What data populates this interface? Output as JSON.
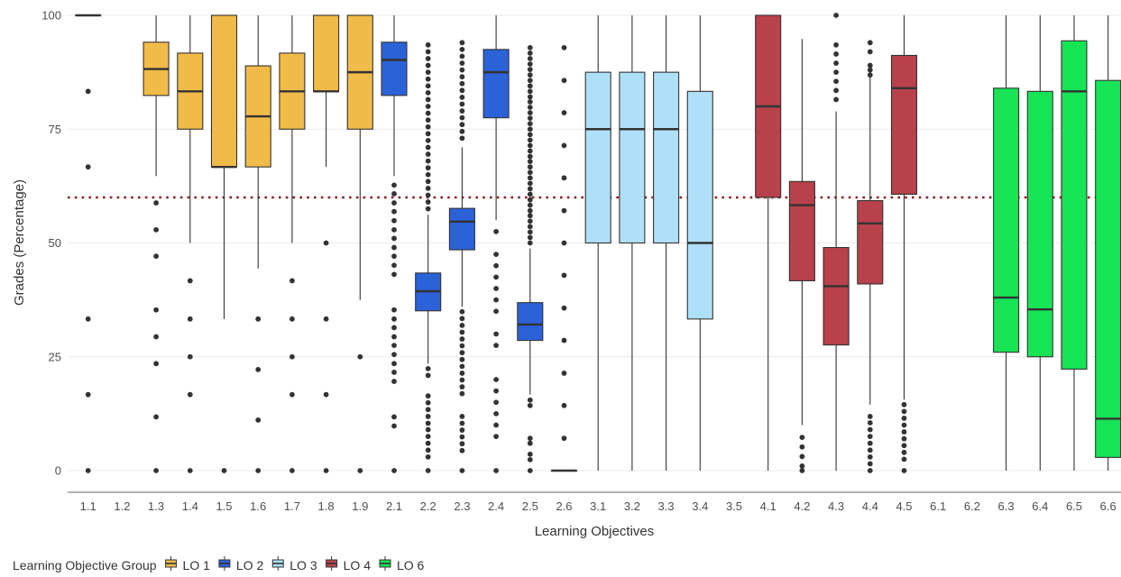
{
  "chart_data": {
    "type": "boxplot",
    "xlabel": "Learning Objectives",
    "ylabel": "Grades (Percentage)",
    "ylim": [
      0,
      100
    ],
    "yticks": [
      0,
      25,
      50,
      75,
      100
    ],
    "grid": true,
    "reference_line": {
      "y": 60,
      "style": "dotted",
      "color": "#8b1a1a"
    },
    "categories": [
      "1.1",
      "1.2",
      "1.3",
      "1.4",
      "1.5",
      "1.6",
      "1.7",
      "1.8",
      "1.9",
      "2.1",
      "2.2",
      "2.3",
      "2.4",
      "2.5",
      "2.6",
      "3.1",
      "3.2",
      "3.3",
      "3.4",
      "3.5",
      "4.1",
      "4.2",
      "4.3",
      "4.4",
      "4.5",
      "6.1",
      "6.2",
      "6.3",
      "6.4",
      "6.5",
      "6.6"
    ],
    "legend": {
      "title": "Learning Objective Group",
      "position": "bottom-left",
      "items": [
        {
          "label": "LO 1",
          "color": "#f0bb48"
        },
        {
          "label": "LO 2",
          "color": "#2c62d8"
        },
        {
          "label": "LO 3",
          "color": "#aee0f7"
        },
        {
          "label": "LO 4",
          "color": "#b8414b"
        },
        {
          "label": "LO 6",
          "color": "#16e455"
        }
      ]
    },
    "boxes": [
      {
        "category": "1.1",
        "group": "LO 1",
        "q1": 100,
        "median": 100,
        "q3": 100,
        "whisker_low": 100,
        "whisker_high": 100,
        "outliers": [
          83.3,
          66.7,
          33.3,
          16.7,
          0
        ]
      },
      {
        "category": "1.3",
        "group": "LO 1",
        "q1": 82.4,
        "median": 88.2,
        "q3": 94.1,
        "whisker_low": 64.7,
        "whisker_high": 100,
        "outliers": [
          58.8,
          52.9,
          47.1,
          35.3,
          29.4,
          23.5,
          11.8,
          0
        ]
      },
      {
        "category": "1.4",
        "group": "LO 1",
        "q1": 75,
        "median": 83.3,
        "q3": 91.7,
        "whisker_low": 50,
        "whisker_high": 100,
        "outliers": [
          41.7,
          33.3,
          25,
          16.7,
          0
        ]
      },
      {
        "category": "1.5",
        "group": "LO 1",
        "q1": 66.7,
        "median": 66.7,
        "q3": 100,
        "whisker_low": 33.3,
        "whisker_high": 100,
        "outliers": [
          0
        ]
      },
      {
        "category": "1.6",
        "group": "LO 1",
        "q1": 66.7,
        "median": 77.8,
        "q3": 88.9,
        "whisker_low": 44.4,
        "whisker_high": 100,
        "outliers": [
          33.3,
          22.2,
          11.1,
          0
        ]
      },
      {
        "category": "1.7",
        "group": "LO 1",
        "q1": 75,
        "median": 83.3,
        "q3": 91.7,
        "whisker_low": 50,
        "whisker_high": 100,
        "outliers": [
          41.7,
          33.3,
          25,
          16.7,
          0
        ]
      },
      {
        "category": "1.8",
        "group": "LO 1",
        "q1": 83.3,
        "median": 83.3,
        "q3": 100,
        "whisker_low": 66.7,
        "whisker_high": 100,
        "outliers": [
          50,
          33.3,
          16.7,
          0
        ]
      },
      {
        "category": "1.9",
        "group": "LO 1",
        "q1": 75,
        "median": 87.5,
        "q3": 100,
        "whisker_low": 37.5,
        "whisker_high": 100,
        "outliers": [
          25,
          0
        ]
      },
      {
        "category": "2.1",
        "group": "LO 2",
        "q1": 82.4,
        "median": 90.2,
        "q3": 94.1,
        "whisker_low": 64.7,
        "whisker_high": 100,
        "outliers": [
          62.7,
          60.8,
          58.8,
          56.9,
          54.9,
          52.9,
          51,
          49,
          47.1,
          45.1,
          43.1,
          35.3,
          33.3,
          31.4,
          29.4,
          27.5,
          25.5,
          23.5,
          21.6,
          19.6,
          11.8,
          9.8,
          0
        ]
      },
      {
        "category": "2.2",
        "group": "LO 2",
        "q1": 35.1,
        "median": 39.4,
        "q3": 43.4,
        "whisker_low": 23.5,
        "whisker_high": 56.2,
        "outliers": [
          93.5,
          92,
          90.5,
          89,
          87.5,
          86,
          84.5,
          83,
          81.5,
          80,
          78.5,
          77,
          75.5,
          74,
          72.5,
          71,
          69.5,
          68,
          66.5,
          65,
          63.5,
          62,
          60.5,
          59,
          57.5,
          22.4,
          20.9,
          16.4,
          14.9,
          13.4,
          11.9,
          10.4,
          9,
          7.5,
          6,
          4.5,
          3,
          0
        ]
      },
      {
        "category": "2.3",
        "group": "LO 2",
        "q1": 48.5,
        "median": 54.7,
        "q3": 57.6,
        "whisker_low": 36,
        "whisker_high": 71,
        "outliers": [
          94,
          92.5,
          91,
          89.5,
          88,
          86.5,
          85,
          83.5,
          82,
          80.5,
          79,
          77.5,
          76,
          74.5,
          73,
          34.9,
          33.4,
          31.9,
          30.4,
          28.9,
          27.4,
          25.9,
          24.4,
          22.9,
          21.4,
          19.9,
          18.4,
          16.9,
          11.9,
          10.4,
          8.9,
          7.4,
          5.9,
          4.4,
          0
        ]
      },
      {
        "category": "2.4",
        "group": "LO 2",
        "q1": 77.5,
        "median": 87.5,
        "q3": 92.5,
        "whisker_low": 55,
        "whisker_high": 100,
        "outliers": [
          52.5,
          47.5,
          45,
          42.5,
          40,
          37.5,
          35,
          30,
          27.5,
          20,
          17.5,
          15,
          12.5,
          10,
          7.5,
          0
        ]
      },
      {
        "category": "2.5",
        "group": "LO 2",
        "q1": 28.6,
        "median": 32.1,
        "q3": 36.9,
        "whisker_low": 16.7,
        "whisker_high": 48.8,
        "outliers": [
          92.9,
          91.7,
          90.5,
          89.3,
          88.1,
          86.9,
          85.7,
          84.5,
          83.3,
          82.1,
          81,
          79.8,
          78.6,
          77.4,
          76.2,
          75,
          73.8,
          72.6,
          71.4,
          70.2,
          69,
          67.9,
          66.7,
          65.5,
          64.3,
          63.1,
          61.9,
          60.7,
          59.5,
          58.3,
          57.1,
          56,
          54.8,
          53.6,
          52.4,
          51.2,
          50,
          15.5,
          14.3,
          7.1,
          6,
          3.6,
          2.4,
          0
        ]
      },
      {
        "category": "2.6",
        "group": "LO 2",
        "q1": 0,
        "median": 0,
        "q3": 0,
        "whisker_low": 0,
        "whisker_high": 0,
        "outliers": [
          92.9,
          85.7,
          78.6,
          71.4,
          64.3,
          57.1,
          50,
          42.9,
          35.7,
          28.6,
          21.4,
          14.3,
          7.1
        ]
      },
      {
        "category": "3.1",
        "group": "LO 3",
        "q1": 50,
        "median": 75,
        "q3": 87.5,
        "whisker_low": 0,
        "whisker_high": 100,
        "outliers": []
      },
      {
        "category": "3.2",
        "group": "LO 3",
        "q1": 50,
        "median": 75,
        "q3": 87.5,
        "whisker_low": 0,
        "whisker_high": 100,
        "outliers": []
      },
      {
        "category": "3.3",
        "group": "LO 3",
        "q1": 50,
        "median": 75,
        "q3": 87.5,
        "whisker_low": 0,
        "whisker_high": 100,
        "outliers": []
      },
      {
        "category": "3.4",
        "group": "LO 3",
        "q1": 33.3,
        "median": 50,
        "q3": 83.3,
        "whisker_low": 0,
        "whisker_high": 100,
        "outliers": []
      },
      {
        "category": "4.1",
        "group": "LO 4",
        "q1": 60,
        "median": 80,
        "q3": 100,
        "whisker_low": 0,
        "whisker_high": 100,
        "outliers": []
      },
      {
        "category": "4.2",
        "group": "LO 4",
        "q1": 41.7,
        "median": 58.3,
        "q3": 63.5,
        "whisker_low": 10,
        "whisker_high": 94.8,
        "outliers": [
          7.3,
          5.2,
          3.1,
          1,
          0
        ]
      },
      {
        "category": "4.3",
        "group": "LO 4",
        "q1": 27.6,
        "median": 40.5,
        "q3": 49,
        "whisker_low": 0,
        "whisker_high": 78.9,
        "outliers": [
          100,
          93.5,
          91.5,
          89.5,
          87.5,
          85.5,
          83.5,
          81.5
        ]
      },
      {
        "category": "4.4",
        "group": "LO 4",
        "q1": 41,
        "median": 54.3,
        "q3": 59.3,
        "whisker_low": 14.5,
        "whisker_high": 86.5,
        "outliers": [
          94,
          92,
          89,
          88,
          86.9,
          11.9,
          10.5,
          9,
          7.5,
          6,
          4.5,
          3,
          1.5,
          0
        ]
      },
      {
        "category": "4.5",
        "group": "LO 4",
        "q1": 60.7,
        "median": 84,
        "q3": 91.2,
        "whisker_low": 15.6,
        "whisker_high": 100,
        "outliers": [
          14.5,
          13,
          11.5,
          10,
          8.5,
          7,
          5.5,
          4,
          2.5,
          0
        ]
      },
      {
        "category": "6.3",
        "group": "LO 6",
        "q1": 26,
        "median": 38,
        "q3": 84,
        "whisker_low": 0,
        "whisker_high": 100,
        "outliers": []
      },
      {
        "category": "6.4",
        "group": "LO 6",
        "q1": 25,
        "median": 35.4,
        "q3": 83.3,
        "whisker_low": 0,
        "whisker_high": 100,
        "outliers": []
      },
      {
        "category": "6.5",
        "group": "LO 6",
        "q1": 22.3,
        "median": 83.3,
        "q3": 94.4,
        "whisker_low": 0,
        "whisker_high": 100,
        "outliers": []
      },
      {
        "category": "6.6",
        "group": "LO 6",
        "q1": 2.9,
        "median": 11.4,
        "q3": 85.7,
        "whisker_low": 0,
        "whisker_high": 100,
        "outliers": []
      }
    ]
  }
}
